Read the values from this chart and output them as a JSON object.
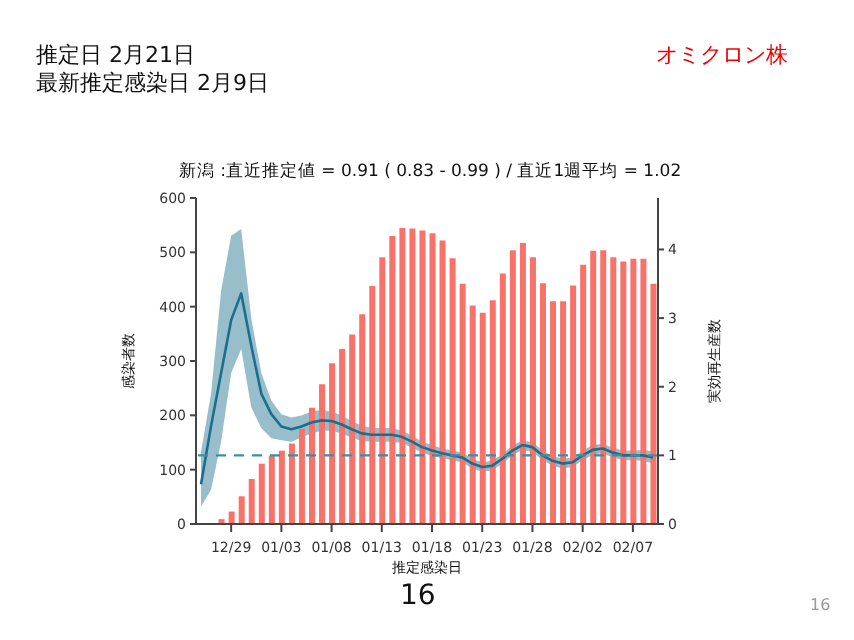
{
  "chart_data": {
    "type": "bar",
    "title": "新潟 :直近推定値 = 0.91 ( 0.83 - 0.99 ) / 直近1週平均 = 1.02",
    "xlabel": "推定感染日",
    "ylabel": "感染者数",
    "y2label": "実効再生産数",
    "annotations": [
      "推定日  2月21日",
      "最新推定感染日  2月9日",
      "オミクロン株",
      "16",
      "16"
    ],
    "categories": [
      null,
      null,
      null,
      "12/29",
      null,
      null,
      null,
      null,
      "01/03",
      null,
      null,
      null,
      null,
      "01/08",
      null,
      null,
      null,
      null,
      "01/13",
      null,
      null,
      null,
      null,
      "01/18",
      null,
      null,
      null,
      null,
      "01/23",
      null,
      null,
      null,
      null,
      "01/28",
      null,
      null,
      null,
      null,
      "02/02",
      null,
      null,
      null,
      null,
      "02/07",
      null,
      null
    ],
    "series": [
      {
        "color": "#f8726a",
        "values": [
          null,
          null,
          9,
          23,
          51,
          83,
          111,
          126,
          135,
          148,
          175,
          214,
          257,
          296,
          322,
          349,
          386,
          438,
          491,
          530,
          545,
          544,
          540,
          535,
          522,
          489,
          442,
          402,
          389,
          412,
          461,
          504,
          517,
          491,
          443,
          410,
          410,
          439,
          477,
          503,
          504,
          491,
          483,
          488,
          488,
          442
        ]
      },
      {
        "type": "line",
        "axis": "y2",
        "color": "#1b6f8c",
        "values": [
          0.58,
          1.43,
          2.2,
          2.97,
          3.36,
          2.6,
          1.9,
          1.6,
          1.42,
          1.38,
          1.42,
          1.48,
          1.51,
          1.5,
          1.45,
          1.38,
          1.32,
          1.3,
          1.3,
          1.3,
          1.27,
          1.2,
          1.12,
          1.07,
          1.03,
          1.0,
          0.97,
          0.88,
          0.83,
          0.85,
          0.95,
          1.07,
          1.15,
          1.12,
          1.0,
          0.92,
          0.88,
          0.9,
          1.0,
          1.08,
          1.1,
          1.04,
          1.0,
          1.0,
          1.0,
          0.97
        ],
        "lower": [
          0.25,
          0.5,
          1.2,
          2.2,
          2.55,
          1.7,
          1.4,
          1.25,
          1.22,
          1.2,
          1.26,
          1.32,
          1.36,
          1.36,
          1.32,
          1.26,
          1.21,
          1.2,
          1.2,
          1.2,
          1.18,
          1.11,
          1.04,
          0.99,
          0.96,
          0.93,
          0.9,
          0.81,
          0.76,
          0.78,
          0.88,
          1.0,
          1.08,
          1.05,
          0.93,
          0.85,
          0.81,
          0.83,
          0.93,
          1.01,
          1.03,
          0.97,
          0.93,
          0.93,
          0.92,
          0.88
        ],
        "upper": [
          1.05,
          1.9,
          3.4,
          4.2,
          4.3,
          3.0,
          2.2,
          1.8,
          1.6,
          1.55,
          1.58,
          1.64,
          1.66,
          1.64,
          1.58,
          1.5,
          1.43,
          1.4,
          1.4,
          1.4,
          1.36,
          1.29,
          1.2,
          1.15,
          1.1,
          1.07,
          1.04,
          0.95,
          0.9,
          0.92,
          1.02,
          1.14,
          1.22,
          1.19,
          1.07,
          0.99,
          0.95,
          0.97,
          1.07,
          1.15,
          1.17,
          1.11,
          1.07,
          1.07,
          1.08,
          1.06
        ]
      }
    ],
    "ylim": [
      0,
      600
    ],
    "yticks": [
      0,
      100,
      200,
      300,
      400,
      500,
      600
    ],
    "y2lim": [
      0,
      4.75
    ],
    "y2ticks": [
      0,
      1,
      2,
      3,
      4
    ],
    "ref_lines": [
      {
        "axis": "y2",
        "value": 1,
        "color": "#3a8fa8",
        "line_style": "dashed"
      }
    ],
    "marker": "none"
  }
}
